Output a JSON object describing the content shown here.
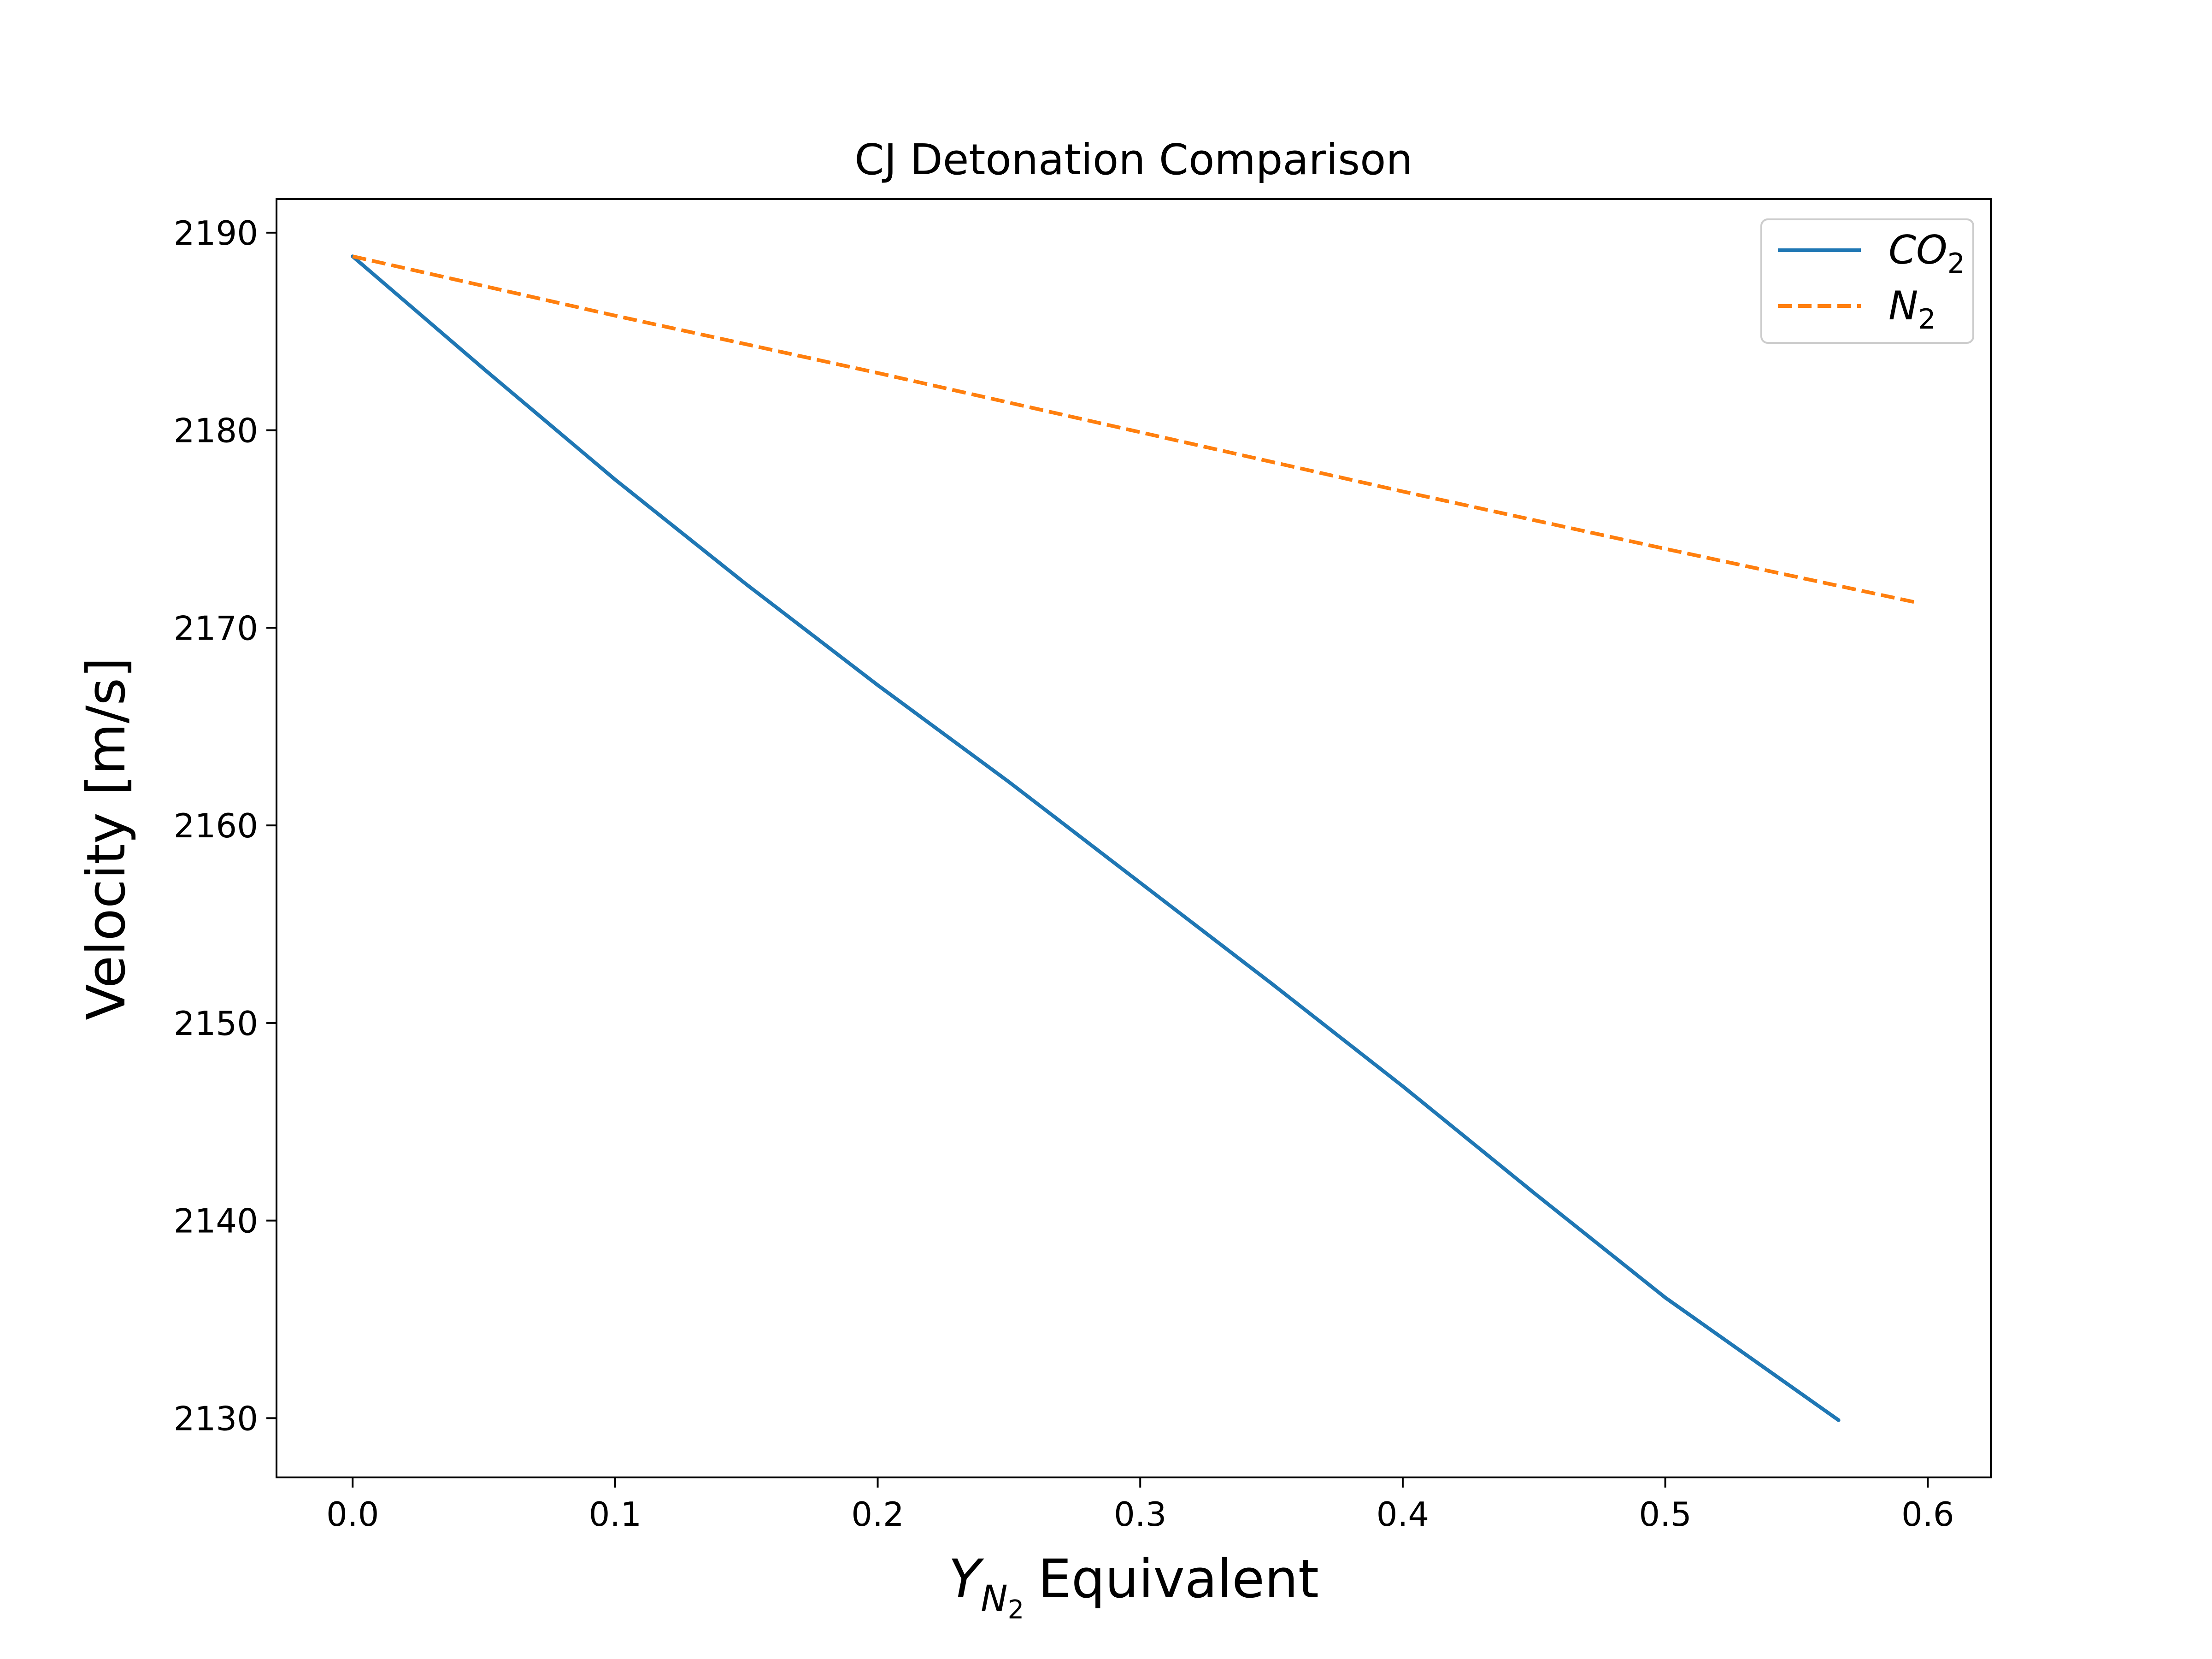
{
  "chart_data": {
    "type": "line",
    "title": "CJ Detonation Comparison",
    "xlabel": {
      "symbol": "Y",
      "subscript_symbol": "N",
      "subscript_index": "2",
      "text": "Equivalent"
    },
    "ylabel": "Velocity [m/s]",
    "xlim": [
      -0.029,
      0.624
    ],
    "ylim": [
      2127,
      2191.7
    ],
    "xticks": [
      "0.0",
      "0.1",
      "0.2",
      "0.3",
      "0.4",
      "0.5",
      "0.6"
    ],
    "yticks": [
      "2130",
      "2140",
      "2150",
      "2160",
      "2170",
      "2180",
      "2190"
    ],
    "grid": false,
    "legend_position": "top-right",
    "series": [
      {
        "name": "CO",
        "name_sub": "2",
        "color": "#1f77b4",
        "style": "solid",
        "x": [
          0.0,
          0.05,
          0.1,
          0.15,
          0.2,
          0.25,
          0.3,
          0.35,
          0.4,
          0.45,
          0.5,
          0.566
        ],
        "y": [
          2188.8,
          2183.1,
          2177.5,
          2172.2,
          2167.1,
          2162.2,
          2157.1,
          2152.0,
          2146.8,
          2141.4,
          2136.1,
          2129.9
        ]
      },
      {
        "name": "N",
        "name_sub": "2",
        "color": "#ff7f0e",
        "style": "dashed",
        "x": [
          0.0,
          0.1,
          0.2,
          0.3,
          0.4,
          0.5,
          0.595
        ],
        "y": [
          2188.8,
          2185.8,
          2182.9,
          2179.9,
          2176.9,
          2174.0,
          2171.3
        ]
      }
    ]
  }
}
